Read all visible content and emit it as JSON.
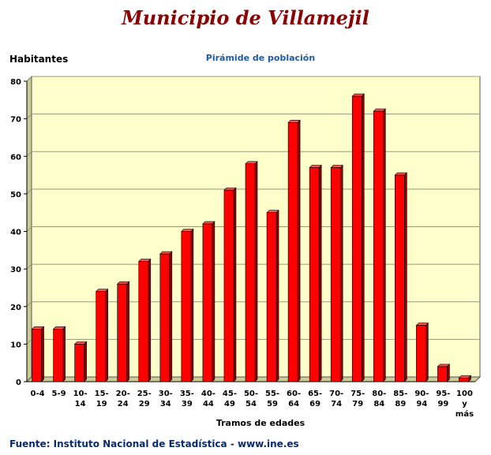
{
  "page": {
    "title": "Municipio de Villamejil",
    "source": "Fuente: Instituto Nacional de Estadística - www.ine.es"
  },
  "chart_data": {
    "type": "bar",
    "title": "Pirámide de población",
    "ylabel": "Habitantes",
    "xlabel": "Tramos de edades",
    "ylim": [
      0,
      80
    ],
    "yticks": [
      0,
      10,
      20,
      30,
      40,
      50,
      60,
      70,
      80
    ],
    "grid": true,
    "categories": [
      [
        "0-4"
      ],
      [
        "5-9"
      ],
      [
        "10-",
        "14"
      ],
      [
        "15-",
        "19"
      ],
      [
        "20-",
        "24"
      ],
      [
        "25-",
        "29"
      ],
      [
        "30-",
        "34"
      ],
      [
        "35-",
        "39"
      ],
      [
        "40-",
        "44"
      ],
      [
        "45-",
        "49"
      ],
      [
        "50-",
        "54"
      ],
      [
        "55-",
        "59"
      ],
      [
        "60-",
        "64"
      ],
      [
        "65-",
        "69"
      ],
      [
        "70-",
        "74"
      ],
      [
        "75-",
        "79"
      ],
      [
        "80-",
        "84"
      ],
      [
        "85-",
        "89"
      ],
      [
        "90-",
        "94"
      ],
      [
        "95-",
        "99"
      ],
      [
        "100",
        "y",
        "más"
      ]
    ],
    "values": [
      14,
      14,
      10,
      24,
      26,
      32,
      34,
      40,
      42,
      51,
      58,
      45,
      69,
      57,
      57,
      76,
      72,
      55,
      15,
      4,
      1
    ],
    "colors": {
      "bar": "#ff0000",
      "bar_side": "#8b0000",
      "bar_top": "#ff5050",
      "plot_bg": "#ffffcc",
      "wall": "#cccc99",
      "grid": "#999977"
    }
  }
}
